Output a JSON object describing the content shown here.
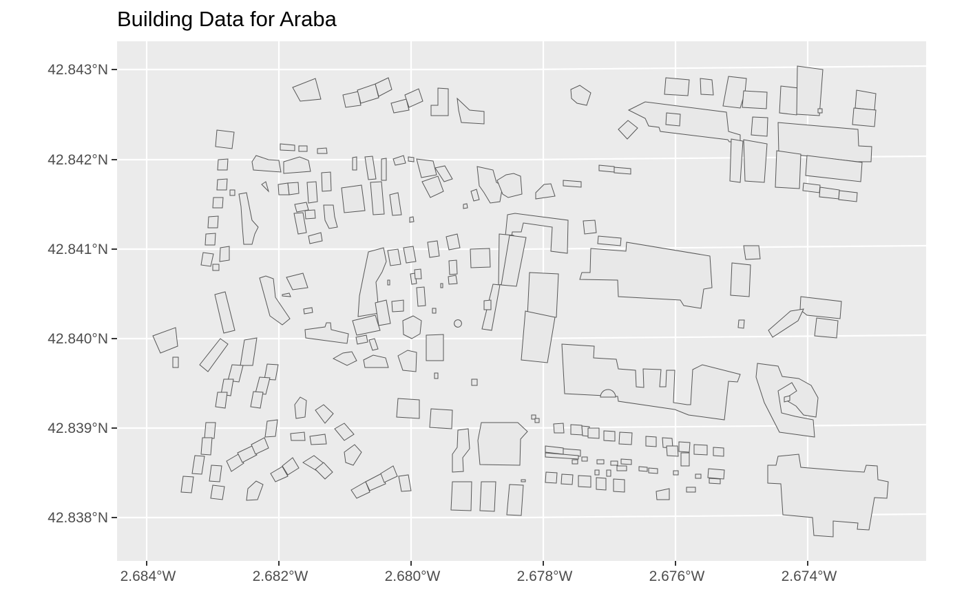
{
  "title": "Building Data for Araba",
  "colors": {
    "panel_background": "#ebebeb",
    "grid": "#ffffff",
    "building_fill": "#e8e8e8",
    "building_outline": "#555555",
    "tick_label": "#4d4d4d"
  },
  "map": {
    "x_axis": {
      "unit": "longitude",
      "ticks": [
        {
          "value": -2.684,
          "label": "2.684°W"
        },
        {
          "value": -2.682,
          "label": "2.682°W"
        },
        {
          "value": -2.68,
          "label": "2.680°W"
        },
        {
          "value": -2.678,
          "label": "2.678°W"
        },
        {
          "value": -2.676,
          "label": "2.676°W"
        },
        {
          "value": -2.674,
          "label": "2.674°W"
        }
      ]
    },
    "y_axis": {
      "unit": "latitude",
      "ticks": [
        {
          "value": 42.843,
          "label": "42.843°N"
        },
        {
          "value": 42.842,
          "label": "42.842°N"
        },
        {
          "value": 42.841,
          "label": "42.841°N"
        },
        {
          "value": 42.84,
          "label": "42.840°N"
        },
        {
          "value": 42.839,
          "label": "42.839°N"
        },
        {
          "value": 42.838,
          "label": "42.838°N"
        }
      ]
    },
    "layer": "building footprints"
  }
}
